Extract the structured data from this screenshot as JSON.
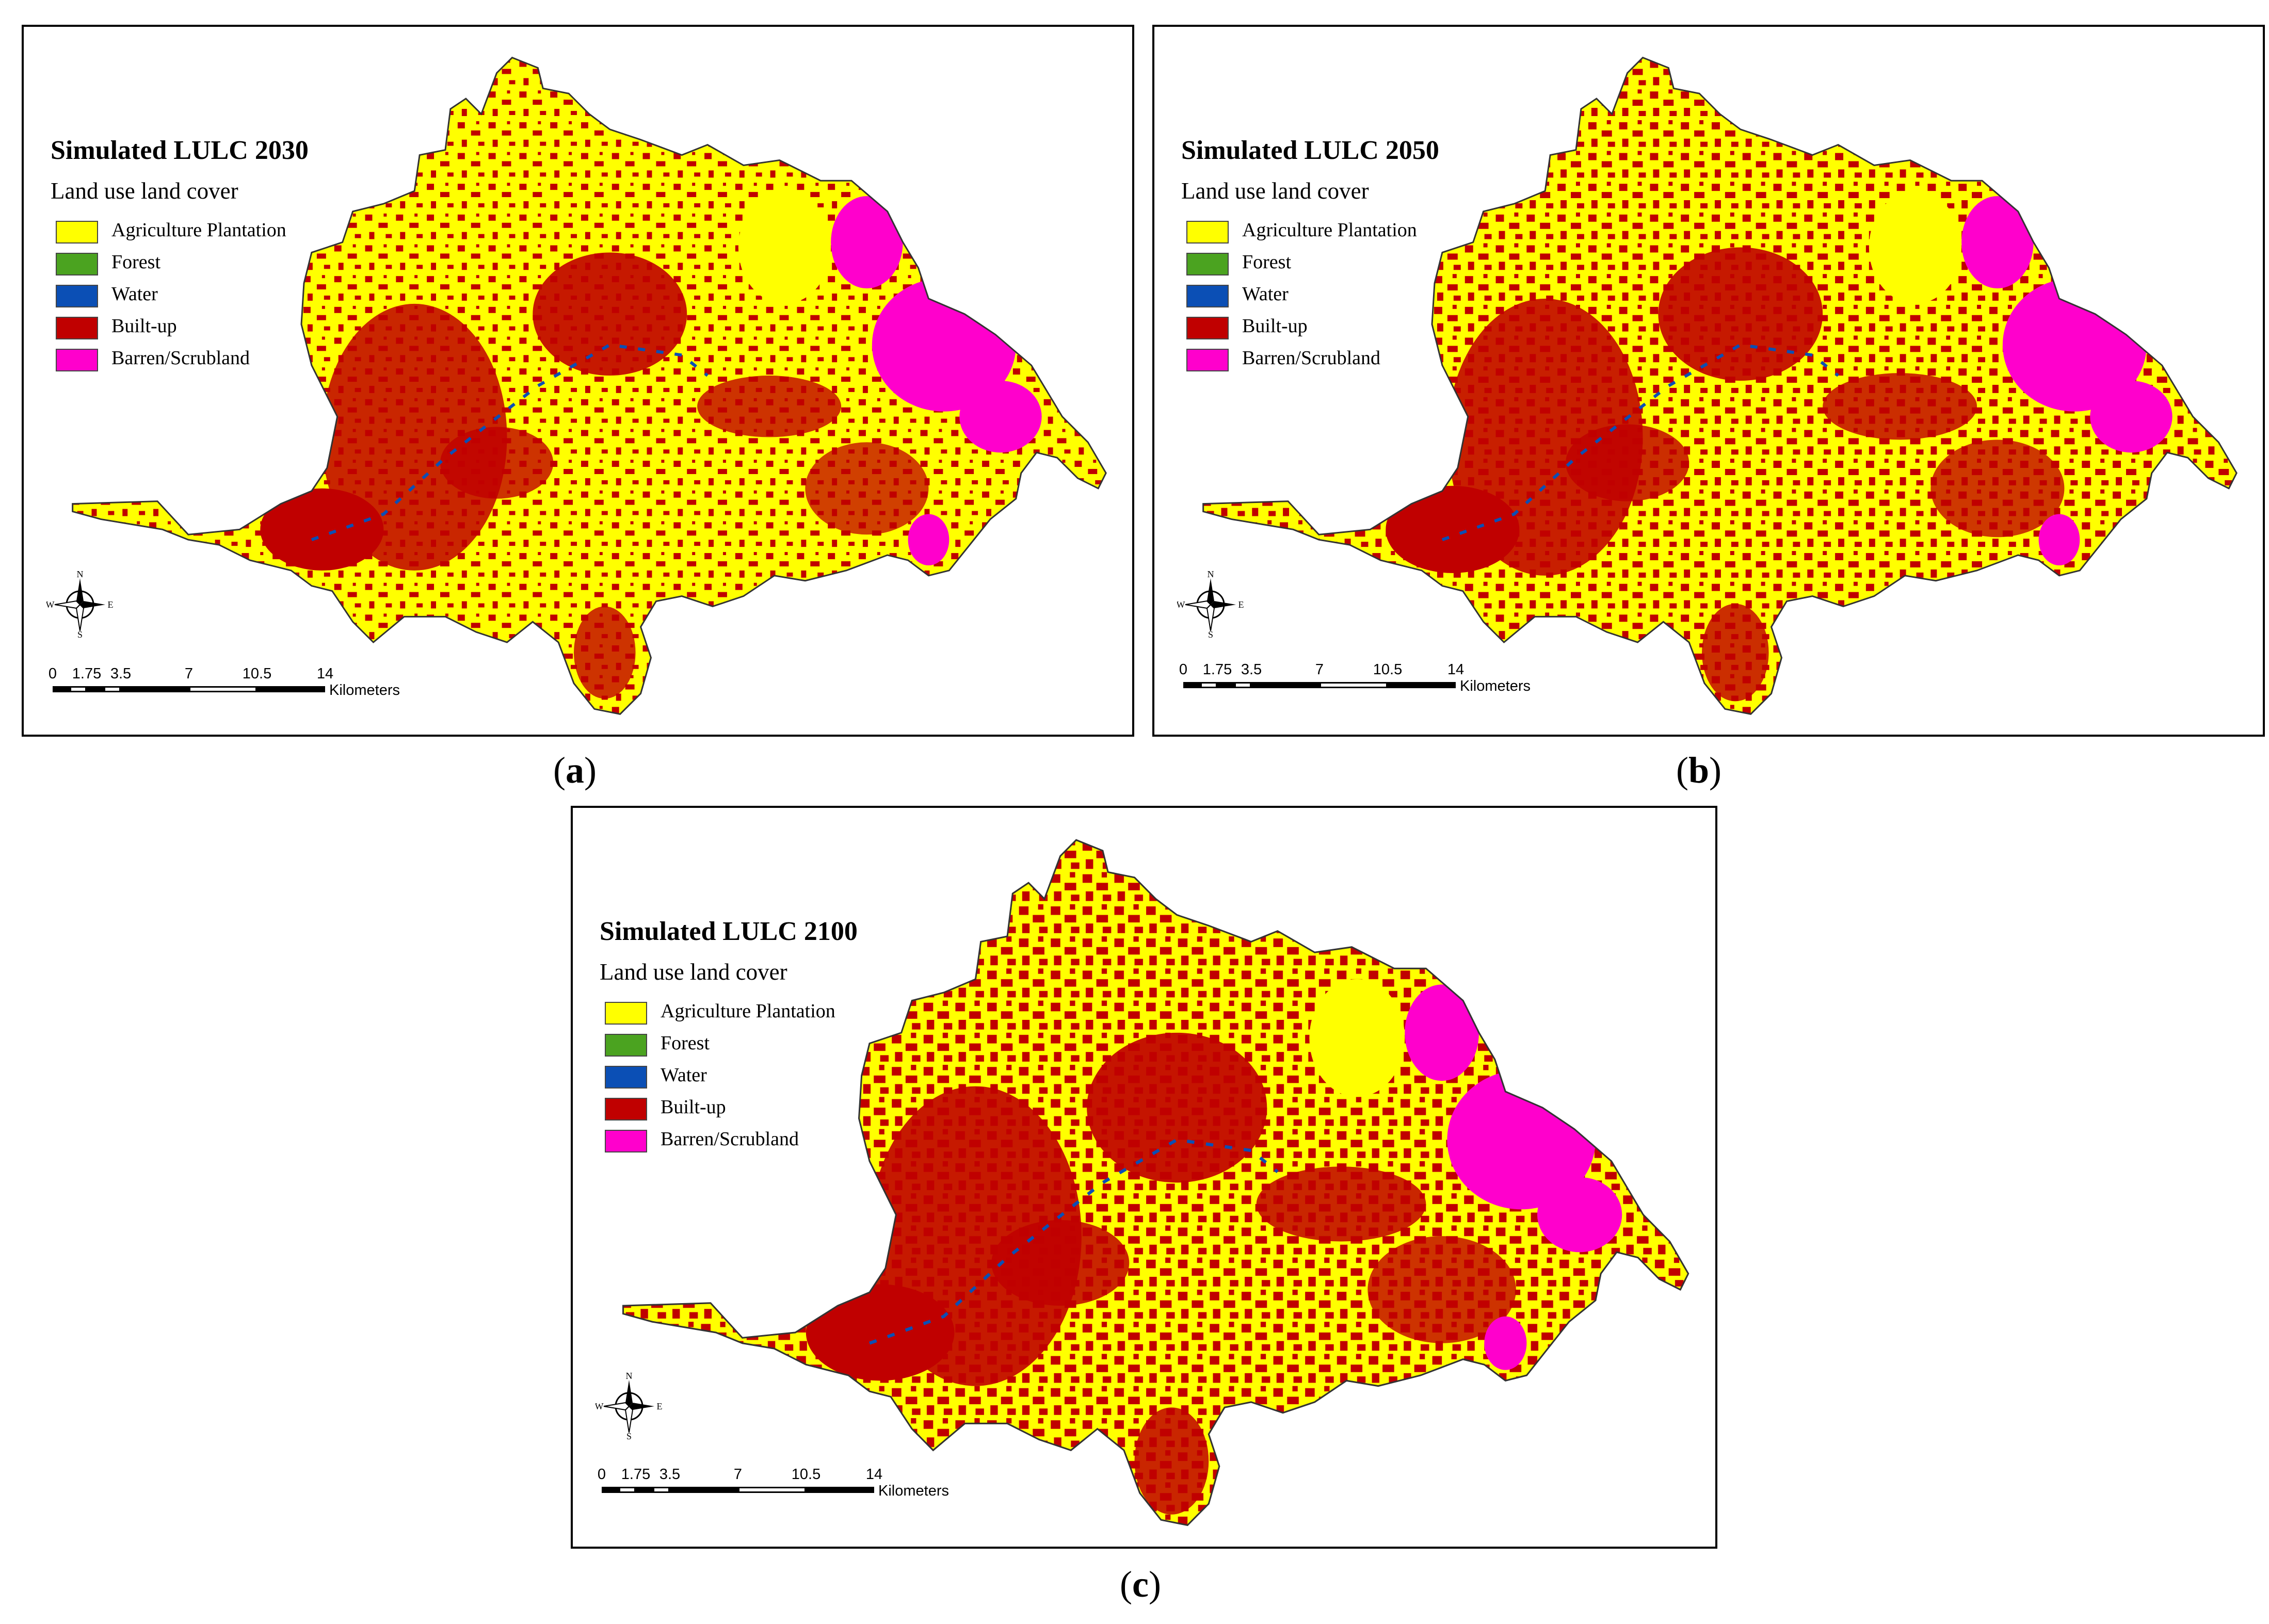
{
  "legend_heading": "Land use land cover",
  "legend_classes": [
    {
      "label": "Agriculture Plantation",
      "color": "#FFFF00"
    },
    {
      "label": "Forest",
      "color": "#4BA320"
    },
    {
      "label": "Water",
      "color": "#0B4FB5"
    },
    {
      "label": "Built-up",
      "color": "#C00000"
    },
    {
      "label": "Barren/Scrubland",
      "color": "#FF00CC"
    }
  ],
  "north_arrow": {
    "n": "N",
    "s": "S",
    "e": "E",
    "w": "W"
  },
  "scale_bar": {
    "ticks": [
      "0",
      "1.75",
      "3.5",
      "7",
      "10.5",
      "14"
    ],
    "units": "Kilometers"
  },
  "panels": [
    {
      "title": "Simulated LULC 2030",
      "caption_letter": "a"
    },
    {
      "title": "Simulated LULC 2050",
      "caption_letter": "b"
    },
    {
      "title": "Simulated LULC 2100",
      "caption_letter": "c"
    }
  ]
}
